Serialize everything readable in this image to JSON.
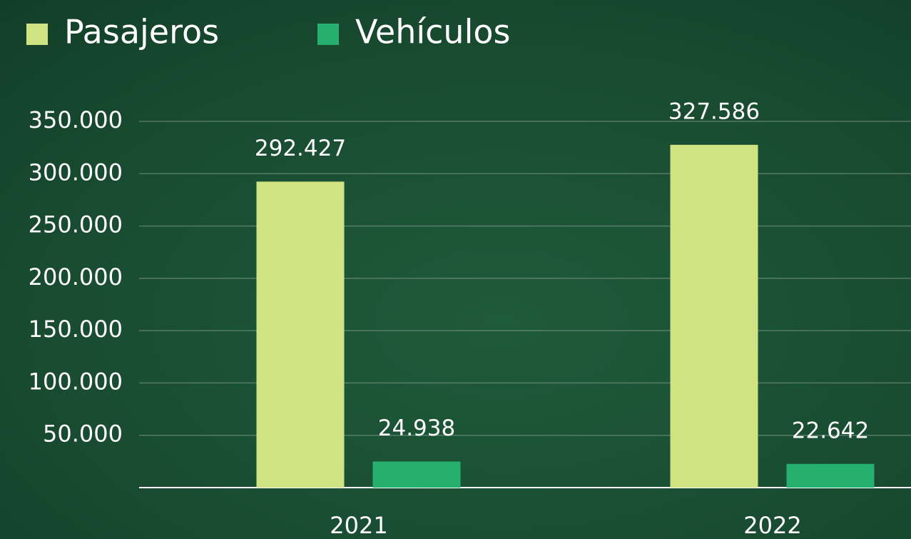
{
  "chart_data": {
    "type": "bar",
    "categories": [
      "2021",
      "2022"
    ],
    "series": [
      {
        "name": "Pasajeros",
        "color": "#cfe383",
        "values": [
          292427,
          327586
        ],
        "value_labels": [
          "292.427",
          "327.586"
        ]
      },
      {
        "name": "Vehículos",
        "color": "#26b06f",
        "values": [
          24938,
          22642
        ],
        "value_labels": [
          "24.938",
          "22.642"
        ]
      }
    ],
    "ylim": [
      0,
      350000
    ],
    "yticks": [
      {
        "value": 50000,
        "label": "50.000"
      },
      {
        "value": 100000,
        "label": "100.000"
      },
      {
        "value": 150000,
        "label": "150.000"
      },
      {
        "value": 200000,
        "label": "200.000"
      },
      {
        "value": 250000,
        "label": "250.000"
      },
      {
        "value": 300000,
        "label": "300.000"
      },
      {
        "value": 350000,
        "label": "350.000"
      }
    ],
    "grid": true,
    "legend": "top-left"
  }
}
